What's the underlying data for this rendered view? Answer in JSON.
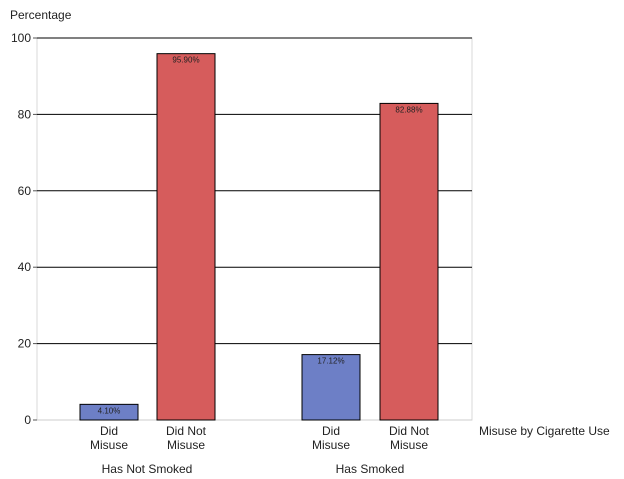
{
  "chart_data": {
    "type": "bar",
    "ylabel": "Percentage",
    "xlabel": "Misuse by Cigarette Use",
    "ylim": [
      0,
      100
    ],
    "yticks": [
      0,
      20,
      40,
      60,
      80,
      100
    ],
    "grid": true,
    "groups": [
      {
        "name": "Has Not Smoked",
        "bars": [
          {
            "label_line1": "Did",
            "label_line2": "Misuse",
            "value": 4.1,
            "value_label": "4.10%",
            "color": "#6d7fc6"
          },
          {
            "label_line1": "Did Not",
            "label_line2": "Misuse",
            "value": 95.9,
            "value_label": "95.90%",
            "color": "#d65c5c"
          }
        ]
      },
      {
        "name": "Has Smoked",
        "bars": [
          {
            "label_line1": "Did",
            "label_line2": "Misuse",
            "value": 17.12,
            "value_label": "17.12%",
            "color": "#6d7fc6"
          },
          {
            "label_line1": "Did Not",
            "label_line2": "Misuse",
            "value": 82.88,
            "value_label": "82.88%",
            "color": "#d65c5c"
          }
        ]
      }
    ]
  }
}
